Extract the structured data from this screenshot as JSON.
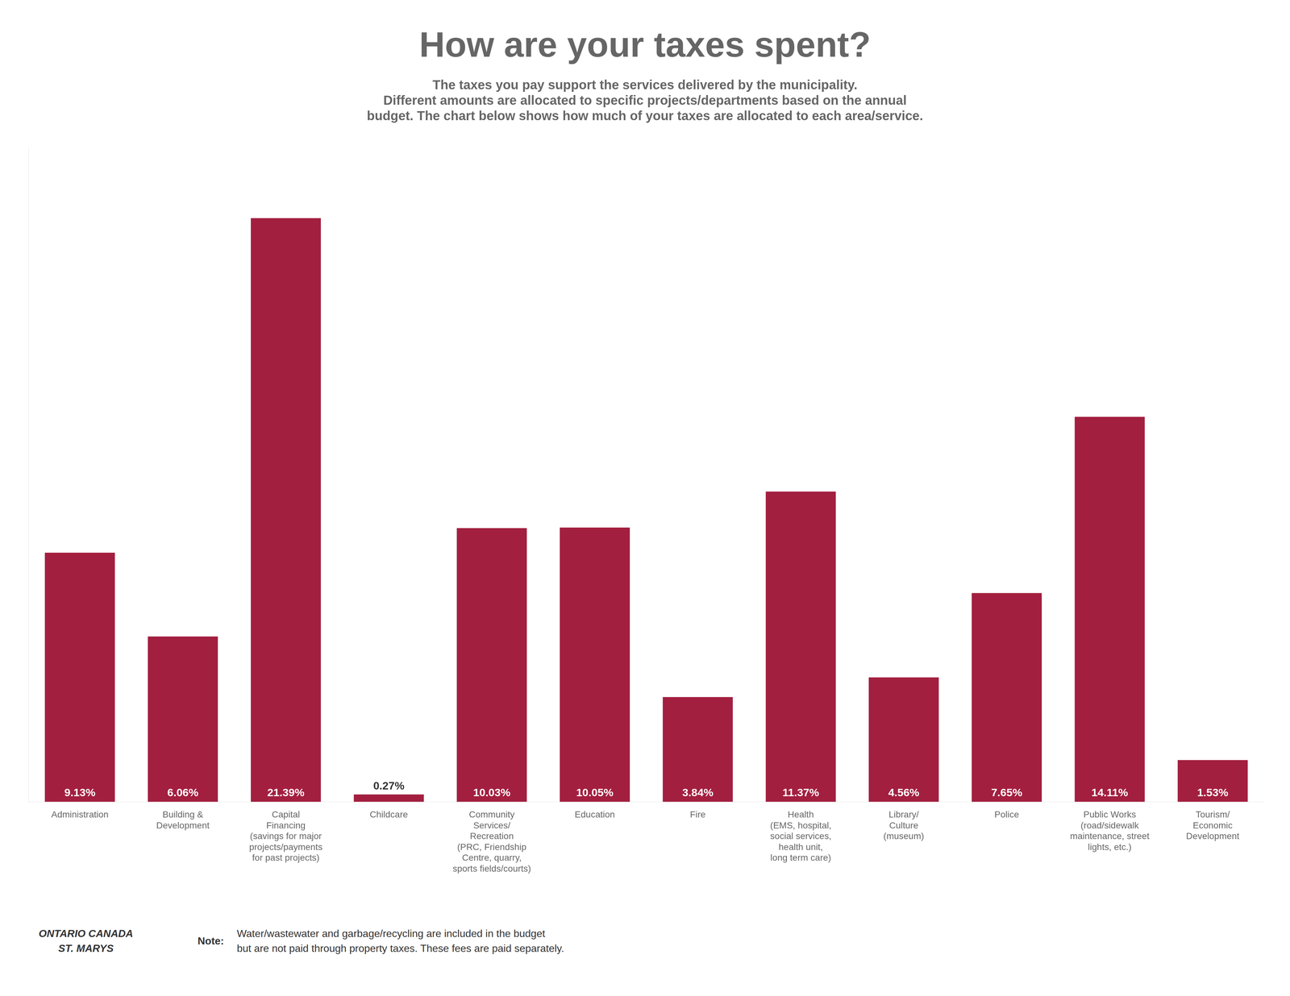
{
  "chart_data": {
    "type": "bar",
    "title": "How are your taxes spent?",
    "subtitle": "The taxes you pay support the services delivered by the municipality.\nDifferent amounts are allocated to specific projects/departments based on the annual\nbudget. The chart below shows how much of your taxes are allocated to each area/service.",
    "categories": [
      "Administration",
      "Building &\nDevelopment",
      "Capital\nFinancing\n(savings for major\nprojects/payments\nfor past projects)",
      "Childcare",
      "Community\nServices/\nRecreation\n(PRC, Friendship\nCentre, quarry,\nsports fields/courts)",
      "Education",
      "Fire",
      "Health\n(EMS, hospital,\nsocial services,\nhealth unit,\nlong term care)",
      "Library/\nCulture\n(museum)",
      "Police",
      "Public Works\n(road/sidewalk\nmaintenance, street\nlights, etc.)",
      "Tourism/\nEconomic\nDevelopment"
    ],
    "values": [
      9.13,
      6.06,
      21.39,
      0.27,
      10.03,
      10.05,
      3.84,
      11.37,
      4.56,
      7.65,
      14.11,
      1.53
    ],
    "value_labels": [
      "9.13%",
      "6.06%",
      "21.39%",
      "0.27%",
      "10.03%",
      "10.05%",
      "3.84%",
      "11.37%",
      "4.56%",
      "7.65%",
      "14.11%",
      "1.53%"
    ],
    "color": "#A31F3F",
    "ylim": [
      0,
      24
    ],
    "grid": false,
    "tick_labels": "x",
    "data_labels": true,
    "annotations": [
      "ONTARIO CANADA\nST. MARYS",
      "Note:",
      "Water/wastewater and garbage/recycling are included in the budget\nbut are not paid through property taxes. These fees are paid separately."
    ]
  }
}
